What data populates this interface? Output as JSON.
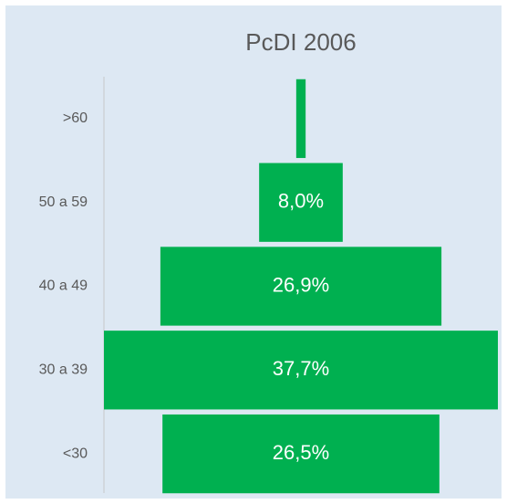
{
  "chart_data": {
    "type": "funnel",
    "title": "PcDI 2006",
    "categories": [
      ">60",
      "50 a 59",
      "40 a 49",
      "30 a 39",
      "<30"
    ],
    "values": [
      0.9,
      8.0,
      26.9,
      37.7,
      26.5
    ],
    "value_labels": [
      null,
      "8,0%",
      "26,9%",
      "37,7%",
      "26,5%"
    ],
    "color": "#00b050"
  }
}
